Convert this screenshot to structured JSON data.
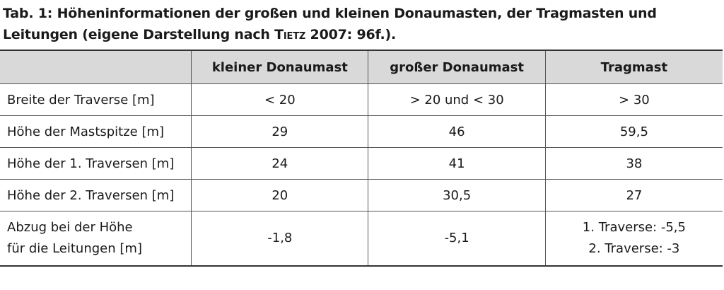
{
  "caption": {
    "prefix": "Tab. 1: Höheninformationen der großen und kleinen Donaumasten, der Tragmasten und Leitungen (eigene Darstellung nach ",
    "author": "Tietz",
    "suffix": " 2007: 96f.)."
  },
  "table": {
    "headers": [
      "",
      "kleiner Donaumast",
      "großer Donaumast",
      "Tragmast"
    ],
    "rows": [
      {
        "label": [
          "Breite der Traverse [m]"
        ],
        "small": [
          "< 20"
        ],
        "large": [
          "> 20 und < 30"
        ],
        "trag": [
          "> 30"
        ]
      },
      {
        "label": [
          "Höhe der Mastspitze [m]"
        ],
        "small": [
          "29"
        ],
        "large": [
          "46"
        ],
        "trag": [
          "59,5"
        ]
      },
      {
        "label": [
          "Höhe der 1. Traversen [m]"
        ],
        "small": [
          "24"
        ],
        "large": [
          "41"
        ],
        "trag": [
          "38"
        ]
      },
      {
        "label": [
          "Höhe der 2. Traversen [m]"
        ],
        "small": [
          "20"
        ],
        "large": [
          "30,5"
        ],
        "trag": [
          "27"
        ]
      },
      {
        "label": [
          "Abzug bei der Höhe",
          "für die Leitungen [m]"
        ],
        "small": [
          "-1,8"
        ],
        "large": [
          "-5,1"
        ],
        "trag": [
          "1. Traverse: -5,5",
          "2. Traverse: -3"
        ]
      }
    ]
  }
}
